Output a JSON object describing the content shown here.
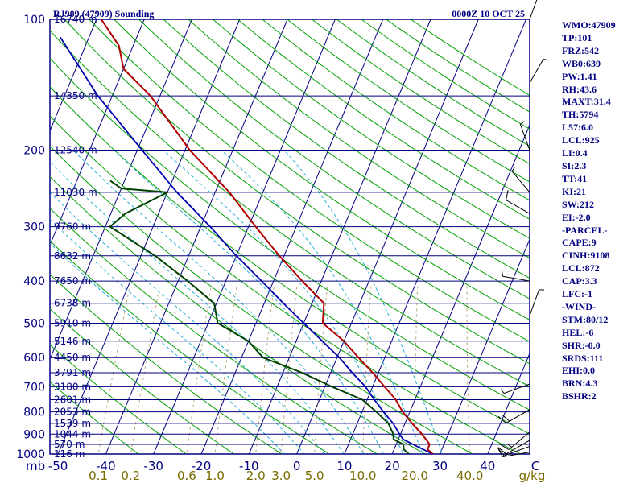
{
  "header": {
    "station": "RJ909 (47909) Sounding",
    "time": "0000Z 10 OCT 25"
  },
  "indices": [
    "WMO:47909",
    "TP:101",
    "FRZ:542",
    "WB0:639",
    "PW:1.41",
    "RH:43.6",
    "MAXT:31.4",
    "TH:5794",
    "L57:6.0",
    "LCL:925",
    "LI:0.4",
    "SI:2.3",
    "TT:41",
    "KI:21",
    "SW:212",
    "EI:-2.0",
    "-PARCEL-",
    "CAPE:9",
    "CINH:9108",
    "LCL:872",
    "CAP:3.3",
    "LFC:-1",
    "-WIND-",
    "STM:80/12",
    "HEL:-6",
    "SHR:-0.0",
    "SRDS:111",
    "EHI:0.0",
    "BRN:4.3",
    "BSHR:2"
  ],
  "colors": {
    "frame": "#000080",
    "isobar": "#000080",
    "isotherm": "#000080",
    "dry_adiabat": "#00a000",
    "moist_adiabat": "#2ab0d8",
    "mixing_ratio": "#b8a878",
    "temperature": "#b00000",
    "dewpoint": "#004000",
    "parcel": "#0000b0",
    "wind_barb": "#000000"
  },
  "chart_data": {
    "type": "skew-t log-p sounding",
    "y_scale": "log-pressure",
    "ylim_hpa": [
      1000,
      100
    ],
    "xlim_c": [
      -50,
      50
    ],
    "pressure_ticks": [
      {
        "p": 100,
        "label": "100"
      },
      {
        "p": 200,
        "label": "200"
      },
      {
        "p": 300,
        "label": "300"
      },
      {
        "p": 400,
        "label": "400"
      },
      {
        "p": 500,
        "label": "500"
      },
      {
        "p": 600,
        "label": "600"
      },
      {
        "p": 700,
        "label": "700"
      },
      {
        "p": 800,
        "label": "800"
      },
      {
        "p": 900,
        "label": "900"
      },
      {
        "p": 1000,
        "label": "1000"
      }
    ],
    "unit_left": "mb",
    "temperature_ticks": [
      {
        "t": -50,
        "label": "-50"
      },
      {
        "t": -40,
        "label": "-40"
      },
      {
        "t": -30,
        "label": "-30"
      },
      {
        "t": -20,
        "label": "-20"
      },
      {
        "t": -10,
        "label": "-10"
      },
      {
        "t": 0,
        "label": "0"
      },
      {
        "t": 10,
        "label": "10"
      },
      {
        "t": 20,
        "label": "20"
      },
      {
        "t": 30,
        "label": "30"
      },
      {
        "t": 40,
        "label": "40"
      },
      {
        "t": 50,
        "label": "C"
      }
    ],
    "mixing_ratio_labels": [
      {
        "w": 0.1,
        "label": "0.1"
      },
      {
        "w": 0.2,
        "label": "0.2"
      },
      {
        "w": 0.6,
        "label": "0.6"
      },
      {
        "w": 1.0,
        "label": "1.0"
      },
      {
        "w": 2.0,
        "label": "2.0"
      },
      {
        "w": 3.0,
        "label": "3.0"
      },
      {
        "w": 5.0,
        "label": "5.0"
      },
      {
        "w": 10.0,
        "label": "10.0"
      },
      {
        "w": 20.0,
        "label": "20.0"
      },
      {
        "w": 40.0,
        "label": "40.0"
      }
    ],
    "mixing_ratio_unit": "g/kg",
    "height_levels": [
      {
        "p": 100,
        "label": "16740 m"
      },
      {
        "p": 150,
        "label": "14350 m"
      },
      {
        "p": 200,
        "label": "12540 m"
      },
      {
        "p": 250,
        "label": "11030 m"
      },
      {
        "p": 300,
        "label": "9760 m"
      },
      {
        "p": 350,
        "label": "8632 m"
      },
      {
        "p": 400,
        "label": "7650 m"
      },
      {
        "p": 450,
        "label": "6738 m"
      },
      {
        "p": 500,
        "label": "5910 m"
      },
      {
        "p": 550,
        "label": "5146 m"
      },
      {
        "p": 600,
        "label": "4450 m"
      },
      {
        "p": 650,
        "label": "3791 m"
      },
      {
        "p": 700,
        "label": "3180 m"
      },
      {
        "p": 750,
        "label": "2601 m"
      },
      {
        "p": 800,
        "label": "2053 m"
      },
      {
        "p": 850,
        "label": "1539 m"
      },
      {
        "p": 900,
        "label": "1044 m"
      },
      {
        "p": 950,
        "label": "570 m"
      },
      {
        "p": 1000,
        "label": "116 m"
      }
    ],
    "temperature_profile": [
      {
        "p": 1000,
        "t": 28.5
      },
      {
        "p": 975,
        "t": 27.0
      },
      {
        "p": 950,
        "t": 27.0
      },
      {
        "p": 925,
        "t": 25.8
      },
      {
        "p": 900,
        "t": 24.5
      },
      {
        "p": 850,
        "t": 21.5
      },
      {
        "p": 800,
        "t": 18.5
      },
      {
        "p": 750,
        "t": 16.0
      },
      {
        "p": 700,
        "t": 12.5
      },
      {
        "p": 650,
        "t": 8.8
      },
      {
        "p": 600,
        "t": 4.5
      },
      {
        "p": 550,
        "t": 0.0
      },
      {
        "p": 500,
        "t": -6.0
      },
      {
        "p": 450,
        "t": -7.5
      },
      {
        "p": 400,
        "t": -14.0
      },
      {
        "p": 350,
        "t": -21.0
      },
      {
        "p": 300,
        "t": -28.5
      },
      {
        "p": 250,
        "t": -37.0
      },
      {
        "p": 200,
        "t": -49.0
      },
      {
        "p": 150,
        "t": -62.0
      },
      {
        "p": 130,
        "t": -70.0
      },
      {
        "p": 115,
        "t": -73.0
      },
      {
        "p": 100,
        "t": -79.0
      }
    ],
    "dewpoint_profile": [
      {
        "p": 1000,
        "t": 23.5
      },
      {
        "p": 975,
        "t": 22.0
      },
      {
        "p": 950,
        "t": 21.5
      },
      {
        "p": 925,
        "t": 19.0
      },
      {
        "p": 900,
        "t": 18.5
      },
      {
        "p": 875,
        "t": 17.5
      },
      {
        "p": 850,
        "t": 16.5
      },
      {
        "p": 800,
        "t": 13.0
      },
      {
        "p": 750,
        "t": 9.0
      },
      {
        "p": 700,
        "t": 1.5
      },
      {
        "p": 650,
        "t": -6.0
      },
      {
        "p": 600,
        "t": -15.5
      },
      {
        "p": 550,
        "t": -20.0
      },
      {
        "p": 500,
        "t": -28.0
      },
      {
        "p": 450,
        "t": -30.5
      },
      {
        "p": 400,
        "t": -38.0
      },
      {
        "p": 350,
        "t": -47.0
      },
      {
        "p": 300,
        "t": -59.0
      },
      {
        "p": 280,
        "t": -57.0
      },
      {
        "p": 250,
        "t": -50.0
      },
      {
        "p": 245,
        "t": -60.0
      },
      {
        "p": 235,
        "t": -63.0
      }
    ],
    "parcel_profile": [
      {
        "p": 1000,
        "t": 28.5
      },
      {
        "p": 950,
        "t": 23.5
      },
      {
        "p": 925,
        "t": 21.0
      },
      {
        "p": 900,
        "t": 19.8
      },
      {
        "p": 850,
        "t": 17.5
      },
      {
        "p": 800,
        "t": 14.5
      },
      {
        "p": 750,
        "t": 11.5
      },
      {
        "p": 700,
        "t": 8.5
      },
      {
        "p": 650,
        "t": 4.5
      },
      {
        "p": 600,
        "t": 0.5
      },
      {
        "p": 550,
        "t": -4.5
      },
      {
        "p": 500,
        "t": -10.0
      },
      {
        "p": 450,
        "t": -16.0
      },
      {
        "p": 400,
        "t": -22.5
      },
      {
        "p": 350,
        "t": -30.0
      },
      {
        "p": 300,
        "t": -38.0
      },
      {
        "p": 250,
        "t": -48.0
      },
      {
        "p": 200,
        "t": -59.0
      },
      {
        "p": 150,
        "t": -73.0
      },
      {
        "p": 110,
        "t": -86.0
      }
    ],
    "wind_barbs": [
      {
        "p": 990,
        "dir_deg": 260,
        "speed_kt": 15
      },
      {
        "p": 960,
        "dir_deg": 250,
        "speed_kt": 10
      },
      {
        "p": 930,
        "dir_deg": 240,
        "speed_kt": 10
      },
      {
        "p": 890,
        "dir_deg": 230,
        "speed_kt": 15
      },
      {
        "p": 790,
        "dir_deg": 240,
        "speed_kt": 20
      },
      {
        "p": 690,
        "dir_deg": 250,
        "speed_kt": 5
      },
      {
        "p": 480,
        "dir_deg": 20,
        "speed_kt": 5
      },
      {
        "p": 400,
        "dir_deg": 280,
        "speed_kt": 5
      },
      {
        "p": 280,
        "dir_deg": 300,
        "speed_kt": 10
      },
      {
        "p": 250,
        "dir_deg": 320,
        "speed_kt": 5
      },
      {
        "p": 200,
        "dir_deg": 340,
        "speed_kt": 5
      },
      {
        "p": 140,
        "dir_deg": 30,
        "speed_kt": 5
      },
      {
        "p": 100,
        "dir_deg": 20,
        "speed_kt": 5
      }
    ]
  }
}
